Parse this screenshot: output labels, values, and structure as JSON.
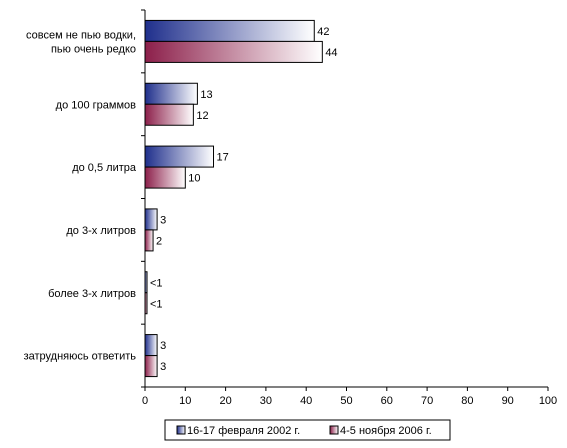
{
  "chart_data": {
    "type": "bar",
    "orientation": "horizontal",
    "categories": [
      [
        "совсем не пью водки,",
        "пью очень редко"
      ],
      [
        "до 100 граммов"
      ],
      [
        "до 0,5 литра"
      ],
      [
        "до 3-х литров"
      ],
      [
        "более 3-х литров"
      ],
      [
        "затрудняюсь ответить"
      ]
    ],
    "series": [
      {
        "name": "16-17 февраля 2002 г.",
        "values": [
          42,
          13,
          17,
          3,
          0.5,
          3
        ],
        "labels": [
          "42",
          "13",
          "17",
          "3",
          "<1",
          "3"
        ],
        "color_light": "#ffffff",
        "color_dark": "#1f2f8c"
      },
      {
        "name": "4-5 ноября 2006 г.",
        "values": [
          44,
          12,
          10,
          2,
          0.3,
          3
        ],
        "labels": [
          "44",
          "12",
          "10",
          "2",
          "<1",
          "3"
        ],
        "color_light": "#ffffff",
        "color_dark": "#8c1f4a"
      }
    ],
    "xlim": [
      0,
      100
    ],
    "xticks": [
      0,
      10,
      20,
      30,
      40,
      50,
      60,
      70,
      80,
      90,
      100
    ],
    "grid": false,
    "legend_position": "bottom"
  }
}
